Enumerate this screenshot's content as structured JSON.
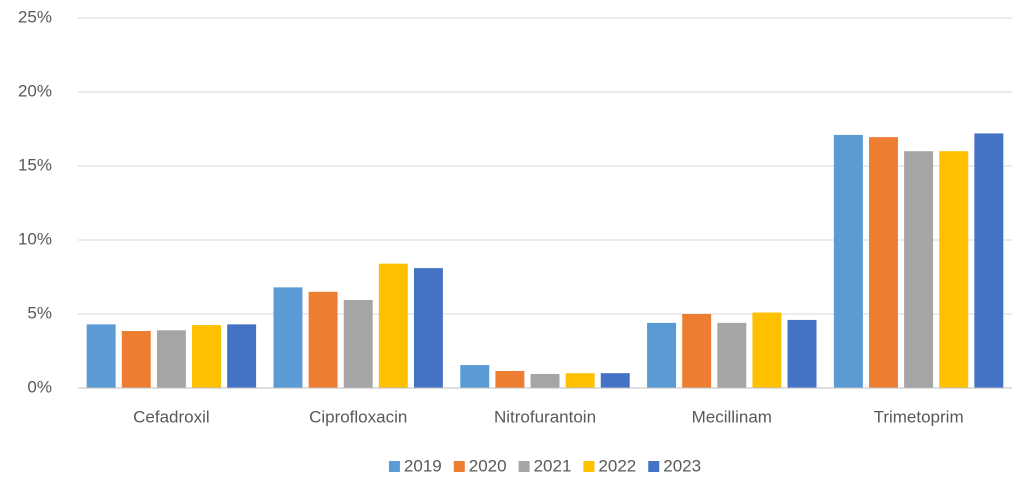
{
  "chart_data": {
    "type": "bar",
    "categories": [
      "Cefadroxil",
      "Ciprofloxacin",
      "Nitrofurantoin",
      "Mecillinam",
      "Trimetoprim"
    ],
    "series": [
      {
        "name": "2019",
        "color": "#5b9bd5",
        "values": [
          4.3,
          6.8,
          1.55,
          4.4,
          17.1
        ]
      },
      {
        "name": "2020",
        "color": "#ed7d31",
        "values": [
          3.85,
          6.5,
          1.15,
          5.0,
          16.95
        ]
      },
      {
        "name": "2021",
        "color": "#a5a5a5",
        "values": [
          3.9,
          5.95,
          0.95,
          4.4,
          16.0
        ]
      },
      {
        "name": "2022",
        "color": "#ffc000",
        "values": [
          4.25,
          8.4,
          1.0,
          5.1,
          16.0
        ]
      },
      {
        "name": "2023",
        "color": "#4472c4",
        "values": [
          4.3,
          8.1,
          1.0,
          4.6,
          17.2
        ]
      }
    ],
    "ylim": [
      0,
      25
    ],
    "yticks": [
      {
        "value": 0,
        "label": "0%"
      },
      {
        "value": 5,
        "label": "5%"
      },
      {
        "value": 10,
        "label": "10%"
      },
      {
        "value": 15,
        "label": "15%"
      },
      {
        "value": 20,
        "label": "20%"
      },
      {
        "value": 25,
        "label": "25%"
      }
    ],
    "grid": true,
    "legend": "bottom"
  }
}
